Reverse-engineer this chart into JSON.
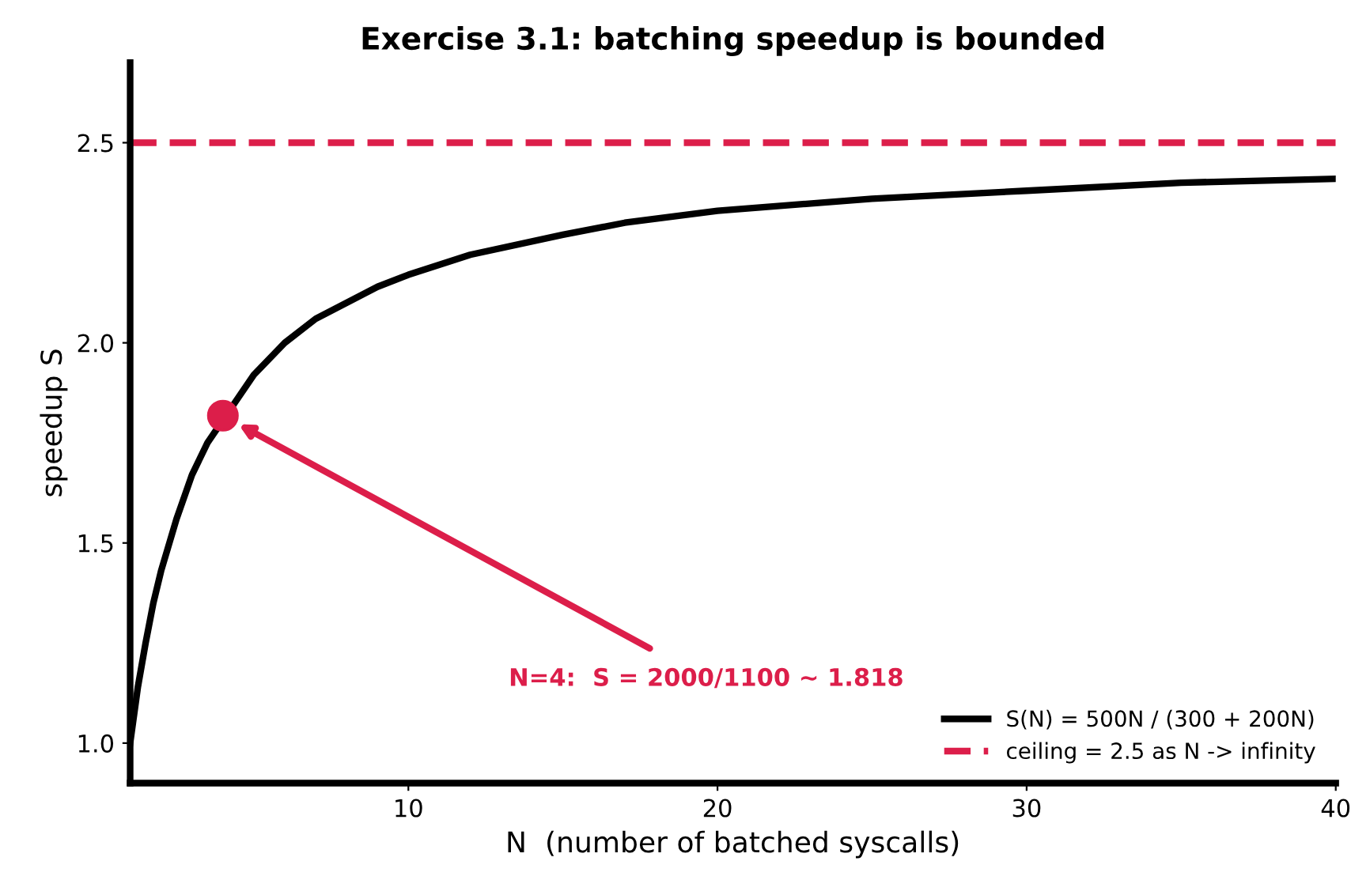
{
  "chart_data": {
    "type": "line",
    "title": "Exercise 3.1: batching speedup is bounded",
    "xlabel": "N  (number of batched syscalls)",
    "ylabel": "speedup S",
    "xlim": [
      1,
      40
    ],
    "xticks": [
      10,
      20,
      30,
      40
    ],
    "ylim": [
      0.9,
      2.7
    ],
    "yticks": [
      {
        "value": 1,
        "label": "1.0"
      },
      1.5,
      {
        "value": 2,
        "label": "2.0"
      },
      2.5
    ],
    "series": [
      {
        "name": "S(N) = 500N / (300 + 200N)",
        "color": "#000000",
        "x": [
          1,
          1.25,
          1.5,
          1.75,
          2,
          2.5,
          3,
          3.5,
          5,
          6,
          7,
          8,
          9,
          10,
          12,
          15,
          17,
          20,
          25,
          30,
          35,
          40
        ],
        "values": [
          1.0,
          1.14,
          1.25,
          1.35,
          1.43,
          1.56,
          1.67,
          1.75,
          1.92,
          2.0,
          2.06,
          2.1,
          2.14,
          2.17,
          2.22,
          2.27,
          2.3,
          2.33,
          2.36,
          2.38,
          2.4,
          2.41
        ]
      },
      {
        "type": "scatter",
        "color": "#dc1e4a",
        "marker": "circle",
        "x": [
          4
        ],
        "values": [
          1.818
        ]
      }
    ],
    "ref_lines": [
      {
        "axis": "y",
        "value": 2.5,
        "label": "ceiling = 2.5 as N -> infinity",
        "color": "#dc1e4a",
        "line_style": "dashed"
      }
    ],
    "annotations": [
      "N=4:  S = 2000/1100 ~ 1.818"
    ],
    "grid": false,
    "legend": "bottom right"
  }
}
